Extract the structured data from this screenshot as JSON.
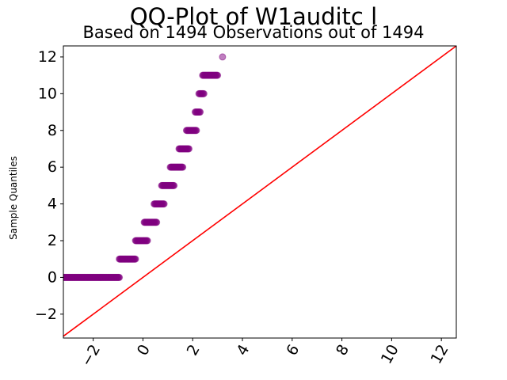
{
  "chart_data": {
    "type": "scatter",
    "title": "QQ-Plot of W1auditc l",
    "subtitle": "Based on 1494 Observations out of 1494",
    "xlabel": "",
    "ylabel": "Sample Quantiles",
    "xlim": [
      -3.2,
      12.6
    ],
    "ylim": [
      -3.3,
      12.6
    ],
    "xticks": [
      -2,
      0,
      2,
      4,
      6,
      8,
      10,
      12
    ],
    "xtick_labels": [
      "−2",
      "0",
      "2",
      "4",
      "6",
      "8",
      "10",
      "12"
    ],
    "yticks": [
      -2,
      0,
      2,
      4,
      6,
      8,
      10,
      12
    ],
    "ytick_labels": [
      "−2",
      "0",
      "2",
      "4",
      "6",
      "8",
      "10",
      "12"
    ],
    "grid": false,
    "series": [
      {
        "color": "#800080",
        "marker": "circle",
        "alpha": 0.5,
        "segments": [
          {
            "y": 0,
            "x_start": -3.2,
            "x_end": -0.95
          },
          {
            "y": 1,
            "x_start": -0.95,
            "x_end": -0.3
          },
          {
            "y": 2,
            "x_start": -0.3,
            "x_end": 0.18
          },
          {
            "y": 3,
            "x_start": 0.05,
            "x_end": 0.55
          },
          {
            "y": 4,
            "x_start": 0.45,
            "x_end": 0.85
          },
          {
            "y": 5,
            "x_start": 0.75,
            "x_end": 1.25
          },
          {
            "y": 6,
            "x_start": 1.1,
            "x_end": 1.6
          },
          {
            "y": 7,
            "x_start": 1.45,
            "x_end": 1.85
          },
          {
            "y": 8,
            "x_start": 1.75,
            "x_end": 2.15
          },
          {
            "y": 9,
            "x_start": 2.1,
            "x_end": 2.3
          },
          {
            "y": 10,
            "x_start": 2.25,
            "x_end": 2.45
          },
          {
            "y": 11,
            "x_start": 2.4,
            "x_end": 3.0
          },
          {
            "y": 12,
            "x_start": 3.2,
            "x_end": 3.2
          }
        ]
      },
      {
        "type": "line",
        "color": "#ff0000",
        "x": [
          -3.2,
          12.6
        ],
        "y": [
          -3.2,
          12.6
        ]
      }
    ]
  }
}
